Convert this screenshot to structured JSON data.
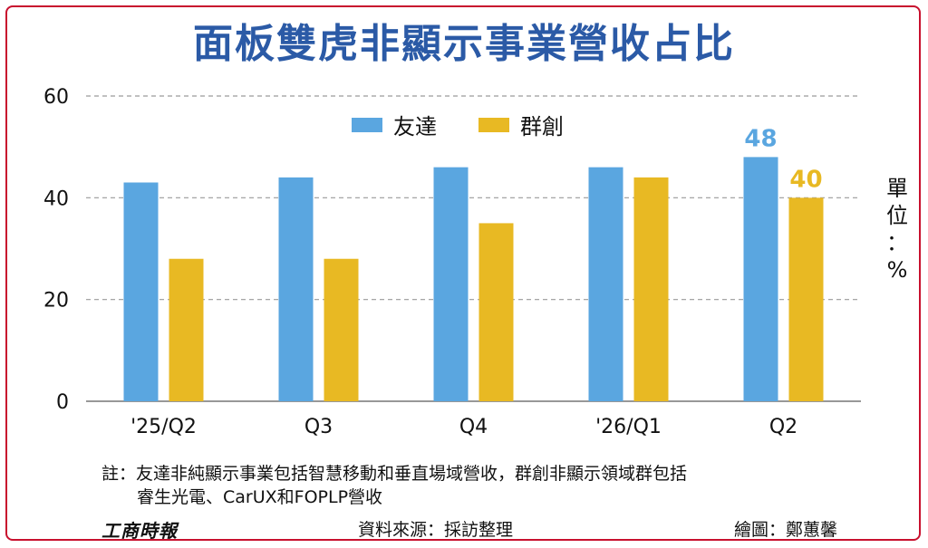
{
  "title": "面板雙虎非顯示事業營收占比",
  "chart_data": {
    "type": "bar",
    "categories": [
      "'25/Q2",
      "Q3",
      "Q4",
      "'26/Q1",
      "Q2"
    ],
    "series": [
      {
        "name": "友達",
        "values": [
          43,
          44,
          46,
          46,
          48
        ],
        "color": "#5aa6e0"
      },
      {
        "name": "群創",
        "values": [
          28,
          28,
          35,
          44,
          40
        ],
        "color": "#e8b923"
      }
    ],
    "ylim": [
      0,
      60
    ],
    "yticks": [
      0,
      20,
      40,
      60
    ],
    "unit_label": "單位：%",
    "data_labels": [
      {
        "series": 0,
        "index": 4,
        "text": "48"
      },
      {
        "series": 1,
        "index": 4,
        "text": "40"
      }
    ],
    "grid": true,
    "legend_position": "top-center"
  },
  "notes": {
    "line1": "註：友達非純顯示事業包括智慧移動和垂直場域營收，群創非顯示領域群包括",
    "line2": "睿生光電、CarUX和FOPLP營收"
  },
  "footer": {
    "logo": "工商時報",
    "source": "資料來源：採訪整理",
    "credit": "繪圖：鄭蕙馨"
  }
}
